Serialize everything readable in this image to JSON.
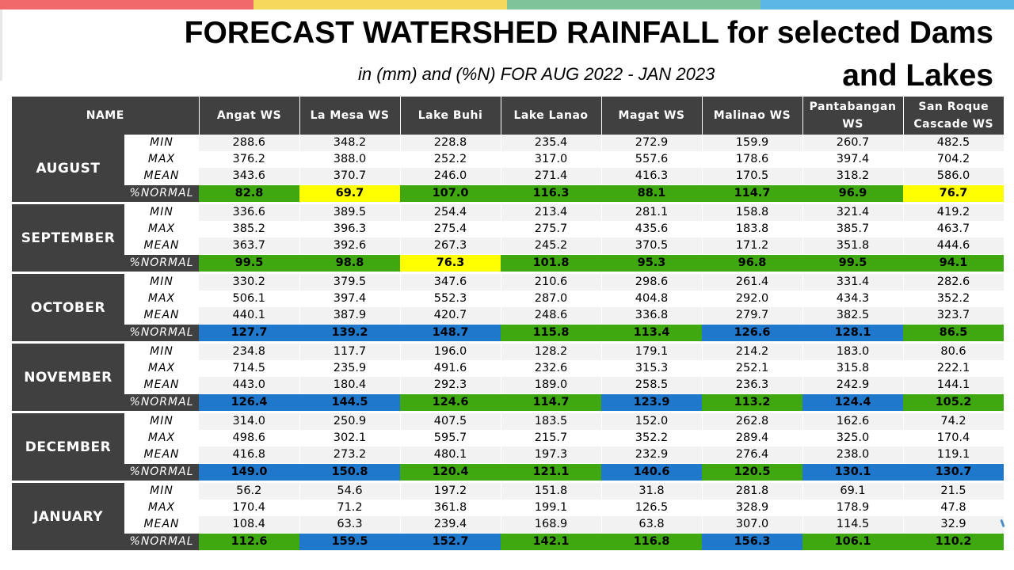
{
  "title_line1": "FORECAST WATERSHED RAINFALL  for selected Dams",
  "title_line2": "and Lakes",
  "subtitle": "in (mm) and (%N) FOR AUG 2022 - JAN 2023",
  "topbar_colors": [
    "#f16a6a",
    "#f5d85c",
    "#7ec49b",
    "#5db7e6"
  ],
  "status_colors": {
    "green": "#3fa811",
    "yellow": "#ffff00",
    "blue": "#1f78cc"
  },
  "table": {
    "name_header": "NAME",
    "watersheds": [
      {
        "line1": "Angat WS",
        "line2": ""
      },
      {
        "line1": "La Mesa WS",
        "line2": ""
      },
      {
        "line1": "Lake Buhi",
        "line2": ""
      },
      {
        "line1": "Lake Lanao",
        "line2": ""
      },
      {
        "line1": "Magat WS",
        "line2": ""
      },
      {
        "line1": "Malinao WS",
        "line2": ""
      },
      {
        "line1": "Pantabangan",
        "line2": "WS"
      },
      {
        "line1": "San Roque",
        "line2": "Cascade WS"
      }
    ],
    "stats": [
      "MIN",
      "MAX",
      "MEAN",
      "%NORMAL"
    ],
    "months": [
      {
        "name": "AUGUST",
        "min": [
          "288.6",
          "348.2",
          "228.8",
          "235.4",
          "272.9",
          "159.9",
          "260.7",
          "482.5"
        ],
        "max": [
          "376.2",
          "388.0",
          "252.2",
          "317.0",
          "557.6",
          "178.6",
          "397.4",
          "704.2"
        ],
        "mean": [
          "343.6",
          "370.7",
          "246.0",
          "271.4",
          "416.3",
          "170.5",
          "318.2",
          "586.0"
        ],
        "normal": [
          "82.8",
          "69.7",
          "107.0",
          "116.3",
          "88.1",
          "114.7",
          "96.9",
          "76.7"
        ],
        "normal_colors": [
          "green",
          "yellow",
          "green",
          "green",
          "green",
          "green",
          "green",
          "yellow"
        ]
      },
      {
        "name": "SEPTEMBER",
        "min": [
          "336.6",
          "389.5",
          "254.4",
          "213.4",
          "281.1",
          "158.8",
          "321.4",
          "419.2"
        ],
        "max": [
          "385.2",
          "396.3",
          "275.4",
          "275.7",
          "435.6",
          "183.8",
          "385.7",
          "463.7"
        ],
        "mean": [
          "363.7",
          "392.6",
          "267.3",
          "245.2",
          "370.5",
          "171.2",
          "351.8",
          "444.6"
        ],
        "normal": [
          "99.5",
          "98.8",
          "76.3",
          "101.8",
          "95.3",
          "96.8",
          "99.5",
          "94.1"
        ],
        "normal_colors": [
          "green",
          "green",
          "yellow",
          "green",
          "green",
          "green",
          "green",
          "green"
        ]
      },
      {
        "name": "OCTOBER",
        "min": [
          "330.2",
          "379.5",
          "347.6",
          "210.6",
          "298.6",
          "261.4",
          "331.4",
          "282.6"
        ],
        "max": [
          "506.1",
          "397.4",
          "552.3",
          "287.0",
          "404.8",
          "292.0",
          "434.3",
          "352.2"
        ],
        "mean": [
          "440.1",
          "387.9",
          "420.7",
          "248.6",
          "336.8",
          "279.7",
          "382.5",
          "323.7"
        ],
        "normal": [
          "127.7",
          "139.2",
          "148.7",
          "115.8",
          "113.4",
          "126.6",
          "128.1",
          "86.5"
        ],
        "normal_colors": [
          "blue",
          "blue",
          "blue",
          "green",
          "green",
          "blue",
          "blue",
          "green"
        ]
      },
      {
        "name": "NOVEMBER",
        "min": [
          "234.8",
          "117.7",
          "196.0",
          "128.2",
          "179.1",
          "214.2",
          "183.0",
          "80.6"
        ],
        "max": [
          "714.5",
          "235.9",
          "491.6",
          "232.6",
          "315.3",
          "252.1",
          "315.8",
          "222.1"
        ],
        "mean": [
          "443.0",
          "180.4",
          "292.3",
          "189.0",
          "258.5",
          "236.3",
          "242.9",
          "144.1"
        ],
        "normal": [
          "126.4",
          "144.5",
          "124.6",
          "114.7",
          "123.9",
          "113.2",
          "124.4",
          "105.2"
        ],
        "normal_colors": [
          "blue",
          "blue",
          "green",
          "green",
          "blue",
          "green",
          "blue",
          "green"
        ]
      },
      {
        "name": "DECEMBER",
        "min": [
          "314.0",
          "250.9",
          "407.5",
          "183.5",
          "152.0",
          "262.8",
          "162.6",
          "74.2"
        ],
        "max": [
          "498.6",
          "302.1",
          "595.7",
          "215.7",
          "352.2",
          "289.4",
          "325.0",
          "170.4"
        ],
        "mean": [
          "416.8",
          "273.2",
          "480.1",
          "197.3",
          "232.9",
          "276.4",
          "238.0",
          "119.1"
        ],
        "normal": [
          "149.0",
          "150.8",
          "120.4",
          "121.1",
          "140.6",
          "120.5",
          "130.1",
          "130.7"
        ],
        "normal_colors": [
          "blue",
          "blue",
          "green",
          "green",
          "blue",
          "green",
          "blue",
          "blue"
        ]
      },
      {
        "name": "JANUARY",
        "min": [
          "56.2",
          "54.6",
          "197.2",
          "151.8",
          "31.8",
          "281.8",
          "69.1",
          "21.5"
        ],
        "max": [
          "170.4",
          "71.2",
          "361.8",
          "199.1",
          "126.5",
          "328.9",
          "178.9",
          "47.8"
        ],
        "mean": [
          "108.4",
          "63.3",
          "239.4",
          "168.9",
          "63.8",
          "307.0",
          "114.5",
          "32.9"
        ],
        "normal": [
          "112.6",
          "159.5",
          "152.7",
          "142.1",
          "116.8",
          "156.3",
          "106.1",
          "110.2"
        ],
        "normal_colors": [
          "green",
          "blue",
          "blue",
          "green",
          "green",
          "blue",
          "green",
          "green"
        ]
      }
    ]
  }
}
